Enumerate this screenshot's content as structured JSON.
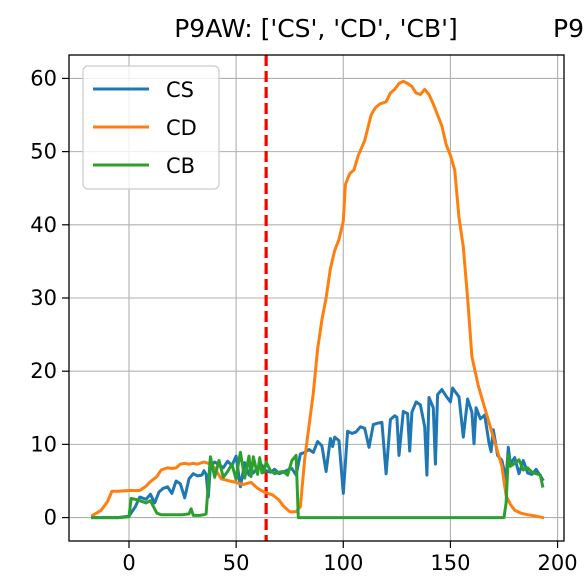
{
  "chart_data": {
    "type": "line",
    "title": "P9AW: ['CS', 'CD', 'CB']",
    "title_overflow": "P9",
    "xlabel": "",
    "ylabel": "",
    "xlim": [
      -28,
      203
    ],
    "ylim": [
      -3.2,
      63.2
    ],
    "xticks": [
      0,
      50,
      100,
      150,
      200
    ],
    "yticks": [
      0,
      10,
      20,
      30,
      40,
      50,
      60
    ],
    "grid": true,
    "legend_position": "upper-left",
    "vline": {
      "x": 64,
      "color": "#ff0000",
      "style": "dashed"
    },
    "series": [
      {
        "name": "CS",
        "color": "#1f77b4",
        "x": [
          -17,
          -5,
          0,
          3,
          5,
          8,
          10,
          12,
          14,
          16,
          18,
          20,
          22,
          24,
          26,
          28,
          30,
          32,
          34,
          35,
          36,
          37,
          38,
          40,
          42,
          44,
          46,
          48,
          50,
          52,
          54,
          56,
          58,
          60,
          62,
          63,
          64,
          66,
          68,
          70,
          72,
          74,
          76,
          78,
          80,
          82,
          84,
          86,
          88,
          90,
          92,
          94,
          95,
          96,
          98,
          100,
          102,
          104,
          106,
          108,
          110,
          112,
          114,
          116,
          118,
          120,
          122,
          124,
          125,
          126,
          128,
          130,
          131,
          132,
          134,
          136,
          138,
          139,
          140,
          142,
          143,
          144,
          146,
          148,
          150,
          151,
          152,
          154,
          156,
          158,
          160,
          161,
          162,
          164,
          166,
          168,
          169,
          170,
          172,
          174,
          176,
          177,
          178,
          180,
          182,
          184,
          186,
          188,
          190,
          192,
          193
        ],
        "y": [
          0,
          0,
          0.2,
          1.5,
          2.8,
          2.5,
          3.2,
          2.0,
          3.5,
          4.0,
          4.2,
          3.3,
          5.0,
          4.6,
          2.7,
          5.3,
          6.0,
          5.7,
          5.8,
          6.4,
          5.9,
          2.8,
          7.0,
          7.6,
          7.2,
          6.8,
          7.7,
          7.1,
          8.4,
          4.2,
          7.5,
          5.8,
          6.1,
          6.8,
          7.2,
          6.6,
          6.4,
          6.2,
          6.6,
          6.0,
          6.2,
          6.5,
          6.7,
          5.8,
          8.7,
          8.9,
          9.3,
          8.9,
          10.4,
          9.8,
          6.3,
          10.8,
          9.7,
          11.0,
          10.5,
          3.3,
          11.8,
          11.5,
          11.7,
          12.4,
          12.2,
          9.6,
          12.7,
          12.9,
          13.0,
          6.0,
          13.4,
          13.9,
          13.7,
          8.5,
          14.5,
          14.2,
          9.1,
          14.4,
          15.8,
          15.4,
          12.4,
          5.8,
          16.4,
          15.0,
          7.3,
          16.8,
          17.5,
          16.6,
          15.8,
          17.7,
          17.3,
          16.5,
          11.0,
          16.2,
          14.4,
          10.1,
          15.0,
          13.5,
          14.0,
          10.2,
          9.0,
          12.0,
          8.5,
          7.8,
          5.2,
          9.6,
          7.3,
          8.2,
          6.0,
          7.8,
          6.1,
          5.9,
          6.6,
          5.7,
          5.2
        ]
      },
      {
        "name": "CD",
        "color": "#ff7f0e",
        "x": [
          -17,
          -13,
          -10,
          -8,
          -5,
          0,
          5,
          8,
          10,
          13,
          15,
          18,
          20,
          22,
          24,
          26,
          28,
          30,
          32,
          35,
          38,
          40,
          43,
          47,
          50,
          53,
          57,
          60,
          63,
          67,
          70,
          72,
          75,
          78,
          80,
          82,
          84,
          86,
          88,
          90,
          92,
          94,
          96,
          98,
          100,
          101,
          103,
          105,
          107,
          110,
          113,
          115,
          117,
          120,
          122,
          124,
          126,
          128,
          130,
          132,
          134,
          136,
          138,
          140,
          142,
          144,
          146,
          148,
          150,
          152,
          154,
          156,
          158,
          160,
          163,
          166,
          170,
          174,
          176,
          178,
          180,
          183,
          186,
          190,
          193
        ],
        "y": [
          0.3,
          1.0,
          2.2,
          3.6,
          3.6,
          3.7,
          3.7,
          4.3,
          4.9,
          5.6,
          6.5,
          6.8,
          6.7,
          6.8,
          7.3,
          7.4,
          7.3,
          7.4,
          7.3,
          7.6,
          7.3,
          6.8,
          5.3,
          5.0,
          4.8,
          4.5,
          4.8,
          4.0,
          3.5,
          3.1,
          2.4,
          1.6,
          0.8,
          0.8,
          1.5,
          8.0,
          12.5,
          17.0,
          23.0,
          27.0,
          30.0,
          34.0,
          36.5,
          38.0,
          40.5,
          45.5,
          47.0,
          47.5,
          49.5,
          51.5,
          55.0,
          56.0,
          56.5,
          56.8,
          58.0,
          58.5,
          59.3,
          59.6,
          59.3,
          58.9,
          58.0,
          57.8,
          58.5,
          57.8,
          56.5,
          55.0,
          53.5,
          51.0,
          49.5,
          47.5,
          41.0,
          37.0,
          30.0,
          22.0,
          18.0,
          15.0,
          11.0,
          7.0,
          3.0,
          1.8,
          1.0,
          0.6,
          0.4,
          0.2,
          0.0
        ]
      },
      {
        "name": "CB",
        "color": "#2ca02c",
        "x": [
          -17,
          -5,
          0,
          1,
          3,
          5,
          8,
          10,
          13,
          15,
          18,
          20,
          25,
          28,
          29,
          30,
          33,
          35,
          36,
          37,
          38,
          40,
          42,
          44,
          46,
          48,
          50,
          51,
          52,
          54,
          56,
          57,
          58,
          60,
          61,
          62,
          63,
          64,
          66,
          68,
          70,
          72,
          74,
          76,
          78,
          79,
          80,
          81,
          85,
          90,
          100,
          120,
          140,
          150,
          160,
          170,
          175,
          176,
          177,
          178,
          180,
          182,
          184,
          186,
          188,
          190,
          192,
          193
        ],
        "y": [
          0,
          0,
          0.1,
          2.6,
          2.5,
          2.3,
          2.0,
          2.3,
          0.6,
          0.4,
          0.4,
          0.4,
          0.4,
          0.5,
          1.2,
          0.3,
          0.3,
          0.4,
          0.5,
          4.5,
          8.3,
          5.5,
          7.8,
          5.5,
          6.3,
          7.3,
          5.2,
          7.3,
          8.9,
          5.4,
          8.4,
          5.6,
          8.3,
          5.9,
          8.2,
          6.1,
          6.2,
          7.6,
          6.4,
          6.0,
          6.2,
          6.3,
          5.8,
          7.8,
          8.5,
          0.0,
          0.0,
          0.0,
          0.0,
          0.0,
          0.0,
          0.0,
          0.0,
          0.0,
          0.0,
          0.0,
          0.0,
          2.0,
          8.5,
          7.0,
          7.4,
          7.9,
          6.5,
          6.8,
          6.2,
          6.0,
          5.8,
          4.3
        ]
      }
    ]
  }
}
